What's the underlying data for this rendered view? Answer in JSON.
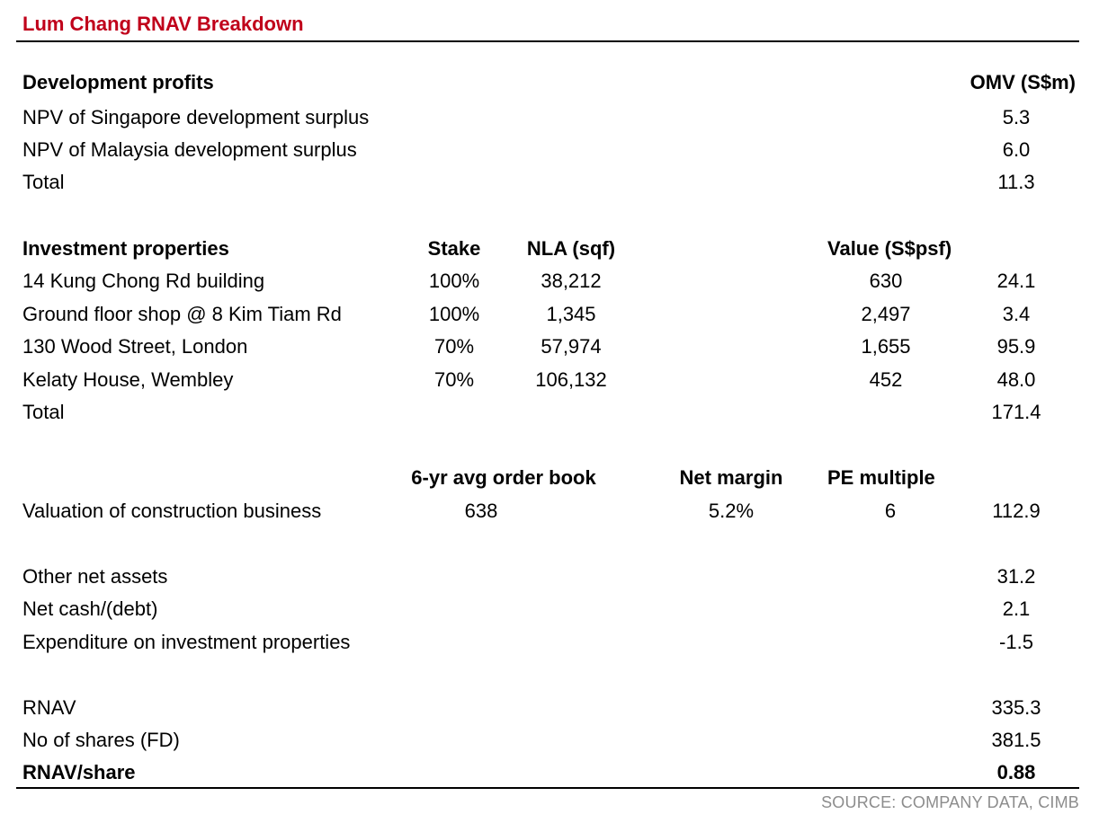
{
  "title": "Lum Chang RNAV Breakdown",
  "development": {
    "header": "Development profits",
    "omv_header": "OMV (S$m)",
    "rows": [
      {
        "label": "NPV of Singapore development surplus",
        "omv": "5.3"
      },
      {
        "label": "NPV of Malaysia development surplus",
        "omv": "6.0"
      },
      {
        "label": "Total",
        "omv": "11.3"
      }
    ]
  },
  "investment": {
    "header": "Investment properties",
    "stake_header": "Stake",
    "nla_header": "NLA (sqf)",
    "value_header": "Value (S$psf)",
    "rows": [
      {
        "label": "14 Kung Chong Rd building",
        "stake": "100%",
        "nla": "38,212",
        "value": "630",
        "omv": "24.1"
      },
      {
        "label": "Ground floor shop @ 8 Kim Tiam Rd",
        "stake": "100%",
        "nla": "1,345",
        "value": "2,497",
        "omv": "3.4"
      },
      {
        "label": "130 Wood Street, London",
        "stake": "70%",
        "nla": "57,974",
        "value": "1,655",
        "omv": "95.9"
      },
      {
        "label": "Kelaty House, Wembley",
        "stake": "70%",
        "nla": "106,132",
        "value": "452",
        "omv": "48.0"
      }
    ],
    "total": {
      "label": "Total",
      "omv": "171.4"
    }
  },
  "construction": {
    "order_book_header": "6-yr avg order book",
    "net_margin_header": "Net margin",
    "pe_header": "PE multiple",
    "label": "Valuation of construction business",
    "order_book": "638",
    "net_margin": "5.2%",
    "pe": "6",
    "omv": "112.9"
  },
  "others": [
    {
      "label": "Other net assets",
      "omv": "31.2"
    },
    {
      "label": "Net cash/(debt)",
      "omv": "2.1"
    },
    {
      "label": "Expenditure on investment properties",
      "omv": "-1.5"
    }
  ],
  "summary": {
    "rnav": {
      "label": "RNAV",
      "value": "335.3"
    },
    "shares": {
      "label": "No of shares (FD)",
      "value": "381.5"
    },
    "per_share": {
      "label": "RNAV/share",
      "value": "0.88"
    }
  },
  "source": "SOURCE: COMPANY DATA, CIMB",
  "colors": {
    "title": "#c0001a",
    "source": "#8c8c8c"
  }
}
